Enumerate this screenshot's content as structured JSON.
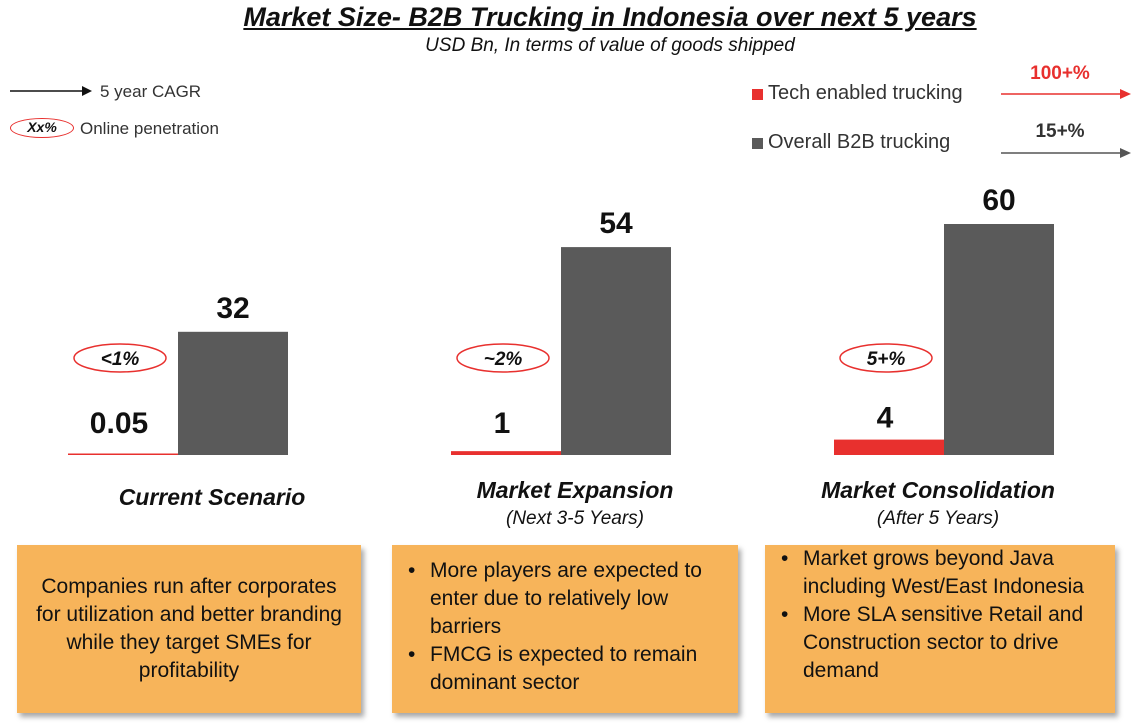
{
  "title": "Market Size- B2B Trucking in Indonesia over next 5 years",
  "subtitle": "USD Bn, In terms of value of goods shipped",
  "key": {
    "cagr_label": "5 year CAGR",
    "penetration_sample": "Xx%",
    "penetration_label": "Online penetration"
  },
  "legend": {
    "tech": {
      "label": "Tech enabled trucking",
      "cagr": "100+%",
      "color": "#e8302e"
    },
    "overall": {
      "label": "Overall B2B trucking",
      "cagr": "15+%",
      "color": "#5a5a5a"
    }
  },
  "chart_data": {
    "type": "bar",
    "categories": [
      "Current  Scenario",
      "Market Expansion",
      "Market Consolidation"
    ],
    "category_subtitles": [
      "",
      "(Next 3-5 Years)",
      "(After 5 Years)"
    ],
    "series": [
      {
        "name": "Tech enabled trucking",
        "values": [
          0.05,
          1,
          4
        ],
        "labels": [
          "0.05",
          "1",
          "4"
        ],
        "color": "#e8302e"
      },
      {
        "name": "Overall B2B trucking",
        "values": [
          32,
          54,
          60
        ],
        "labels": [
          "32",
          "54",
          "60"
        ],
        "color": "#5a5a5a"
      }
    ],
    "online_penetration": [
      "<1%",
      "~2%",
      "5+%"
    ],
    "ylim": [
      0,
      60
    ]
  },
  "boxes": [
    {
      "text": "Companies run after corporates for utilization and better branding while they target SMEs for profitability"
    },
    {
      "bullets": [
        "More players are expected to enter due to relatively low barriers",
        "FMCG is expected to remain dominant sector"
      ]
    },
    {
      "bullets": [
        "Market grows beyond Java including West/East Indonesia",
        "More SLA sensitive Retail and Construction sector to drive demand"
      ]
    }
  ]
}
